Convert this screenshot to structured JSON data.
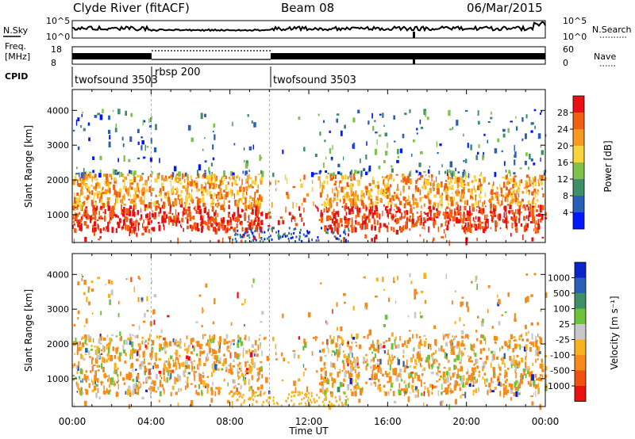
{
  "header": {
    "station": "Clyde River (fitACF)",
    "beam": "Beam 08",
    "date": "06/Mar/2015"
  },
  "noise_panel": {
    "left_label": "N.Sky",
    "left_ticks": [
      "10^5",
      "10^0"
    ],
    "right_ticks": [
      "10^5",
      "10^0"
    ],
    "right_label": "N.Search"
  },
  "freq_panel": {
    "left_label_1": "Freq.",
    "left_label_2": "[MHz]",
    "left_ticks": [
      "18",
      "8"
    ],
    "right_ticks": [
      "60",
      "0"
    ],
    "right_label": "Nave"
  },
  "cpid": {
    "label": "CPID",
    "segments": [
      {
        "name": "twofsound 3503",
        "start": 0,
        "end": 4
      },
      {
        "name": "rbsp 200",
        "start": 4,
        "end": 10
      },
      {
        "name": "twofsound 3503",
        "start": 10,
        "end": 24
      }
    ]
  },
  "chart_data": [
    {
      "type": "heatmap",
      "name": "Power",
      "ylabel": "Slant Range [km]",
      "yticks": [
        1000,
        2000,
        3000,
        4000
      ],
      "ylim": [
        200,
        4600
      ],
      "xlim": [
        0,
        24
      ],
      "colorbar": {
        "label": "Power [dB]",
        "ticks": [
          "4",
          "8",
          "12",
          "16",
          "20",
          "24",
          "28"
        ],
        "colors": [
          "#0018ff",
          "#2a5fb8",
          "#3e8e66",
          "#7fc24a",
          "#f7d43b",
          "#f79a1e",
          "#f06010",
          "#e81010"
        ]
      }
    },
    {
      "type": "heatmap",
      "name": "Velocity",
      "ylabel": "Slant Range [km]",
      "yticks": [
        1000,
        2000,
        3000,
        4000
      ],
      "ylim": [
        200,
        4600
      ],
      "xlim": [
        0,
        24
      ],
      "xlabel": "Time UT",
      "xticks": [
        "00:00",
        "04:00",
        "08:00",
        "12:00",
        "16:00",
        "20:00",
        "00:00"
      ],
      "colorbar": {
        "label": "Velocity [m s⁻¹]",
        "ticks": [
          "1000",
          "500",
          "100",
          "25",
          "-25",
          "-100",
          "-500",
          "-1000"
        ],
        "colors": [
          "#0a24c8",
          "#2a5fb8",
          "#3e8e66",
          "#6cc23a",
          "#c8c8c8",
          "#f7b21e",
          "#f78a1a",
          "#f05010",
          "#e81010"
        ]
      }
    }
  ]
}
